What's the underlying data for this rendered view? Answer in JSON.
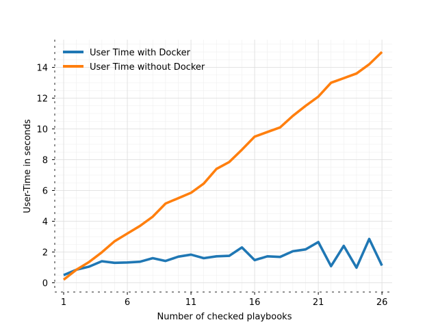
{
  "chart_data": {
    "type": "line",
    "title": "",
    "xlabel": "Number of checked playbooks",
    "ylabel": "User-Time in seconds",
    "xlim": [
      0.3,
      26.8
    ],
    "ylim": [
      -0.6,
      15.8
    ],
    "xticks": [
      1,
      6,
      11,
      16,
      21,
      26
    ],
    "xtick_labels": [
      "1",
      "6",
      "11",
      "16",
      "21",
      "26"
    ],
    "yticks": [
      0,
      2,
      4,
      6,
      8,
      10,
      12,
      14
    ],
    "ytick_labels": [
      "0",
      "2",
      "4",
      "6",
      "8",
      "10",
      "12",
      "14"
    ],
    "grid": true,
    "legend_position": "top-left",
    "x": [
      1,
      2,
      3,
      4,
      5,
      6,
      7,
      8,
      9,
      10,
      11,
      12,
      13,
      14,
      15,
      16,
      17,
      18,
      19,
      20,
      21,
      22,
      23,
      24,
      25,
      26
    ],
    "series": [
      {
        "name": "User Time with Docker",
        "color": "#1f77b4",
        "values": [
          0.5,
          0.85,
          1.05,
          1.4,
          1.3,
          1.32,
          1.37,
          1.6,
          1.42,
          1.7,
          1.83,
          1.6,
          1.72,
          1.75,
          2.3,
          1.47,
          1.72,
          1.68,
          2.05,
          2.17,
          2.65,
          1.08,
          2.4,
          0.98,
          2.85,
          1.12
        ]
      },
      {
        "name": "User Time without Docker",
        "color": "#ff7f0e",
        "values": [
          0.2,
          0.85,
          1.35,
          1.98,
          2.7,
          3.2,
          3.7,
          4.3,
          5.15,
          5.5,
          5.85,
          6.45,
          7.4,
          7.85,
          8.65,
          9.5,
          9.8,
          10.1,
          10.85,
          11.5,
          12.1,
          13.0,
          13.3,
          13.6,
          14.2,
          15.0
        ]
      }
    ]
  }
}
